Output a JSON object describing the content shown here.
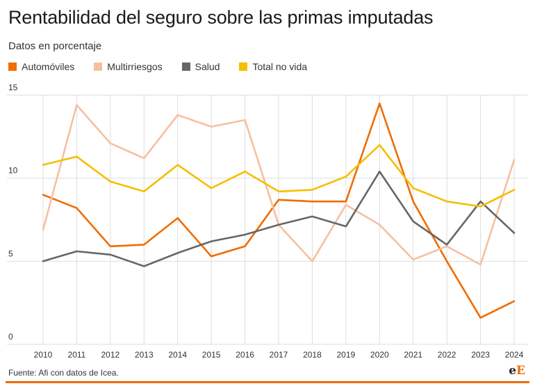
{
  "title": "Rentabilidad del seguro sobre las primas imputadas",
  "subtitle": "Datos en porcentaje",
  "footer": {
    "source": "Fuente: Afi con datos de Icea.",
    "logo_e1": "e",
    "logo_e2": "E"
  },
  "chart_data": {
    "type": "line",
    "title": "Rentabilidad del seguro sobre las primas imputadas",
    "subtitle": "Datos en porcentaje",
    "x": [
      2010,
      2011,
      2012,
      2013,
      2014,
      2015,
      2016,
      2017,
      2018,
      2019,
      2020,
      2021,
      2022,
      2023,
      2024
    ],
    "ylim": [
      0,
      15
    ],
    "yticks": [
      0,
      5,
      10,
      15
    ],
    "grid": "vertical-and-horizontal",
    "legend_position": "top-left",
    "series": [
      {
        "name": "Automóviles",
        "color": "#ef6c00",
        "values": [
          9.0,
          8.2,
          5.9,
          6.0,
          7.6,
          5.3,
          5.9,
          8.7,
          8.6,
          8.6,
          14.5,
          8.6,
          5.0,
          1.6,
          2.6
        ]
      },
      {
        "name": "Multirriesgos",
        "color": "#f7bfa0",
        "values": [
          6.9,
          14.4,
          12.1,
          11.2,
          13.8,
          13.1,
          13.5,
          7.2,
          5.0,
          8.4,
          7.2,
          5.1,
          5.9,
          4.8,
          11.1
        ]
      },
      {
        "name": "Salud",
        "color": "#666666",
        "values": [
          5.0,
          5.6,
          5.4,
          4.7,
          5.5,
          6.2,
          6.6,
          7.2,
          7.7,
          7.1,
          10.4,
          7.4,
          6.0,
          8.6,
          6.7
        ]
      },
      {
        "name": "Total no vida",
        "color": "#f5be00",
        "values": [
          10.8,
          11.3,
          9.8,
          9.2,
          10.8,
          9.4,
          10.4,
          9.2,
          9.3,
          10.1,
          12.0,
          9.4,
          8.6,
          8.3,
          9.3
        ]
      }
    ]
  }
}
